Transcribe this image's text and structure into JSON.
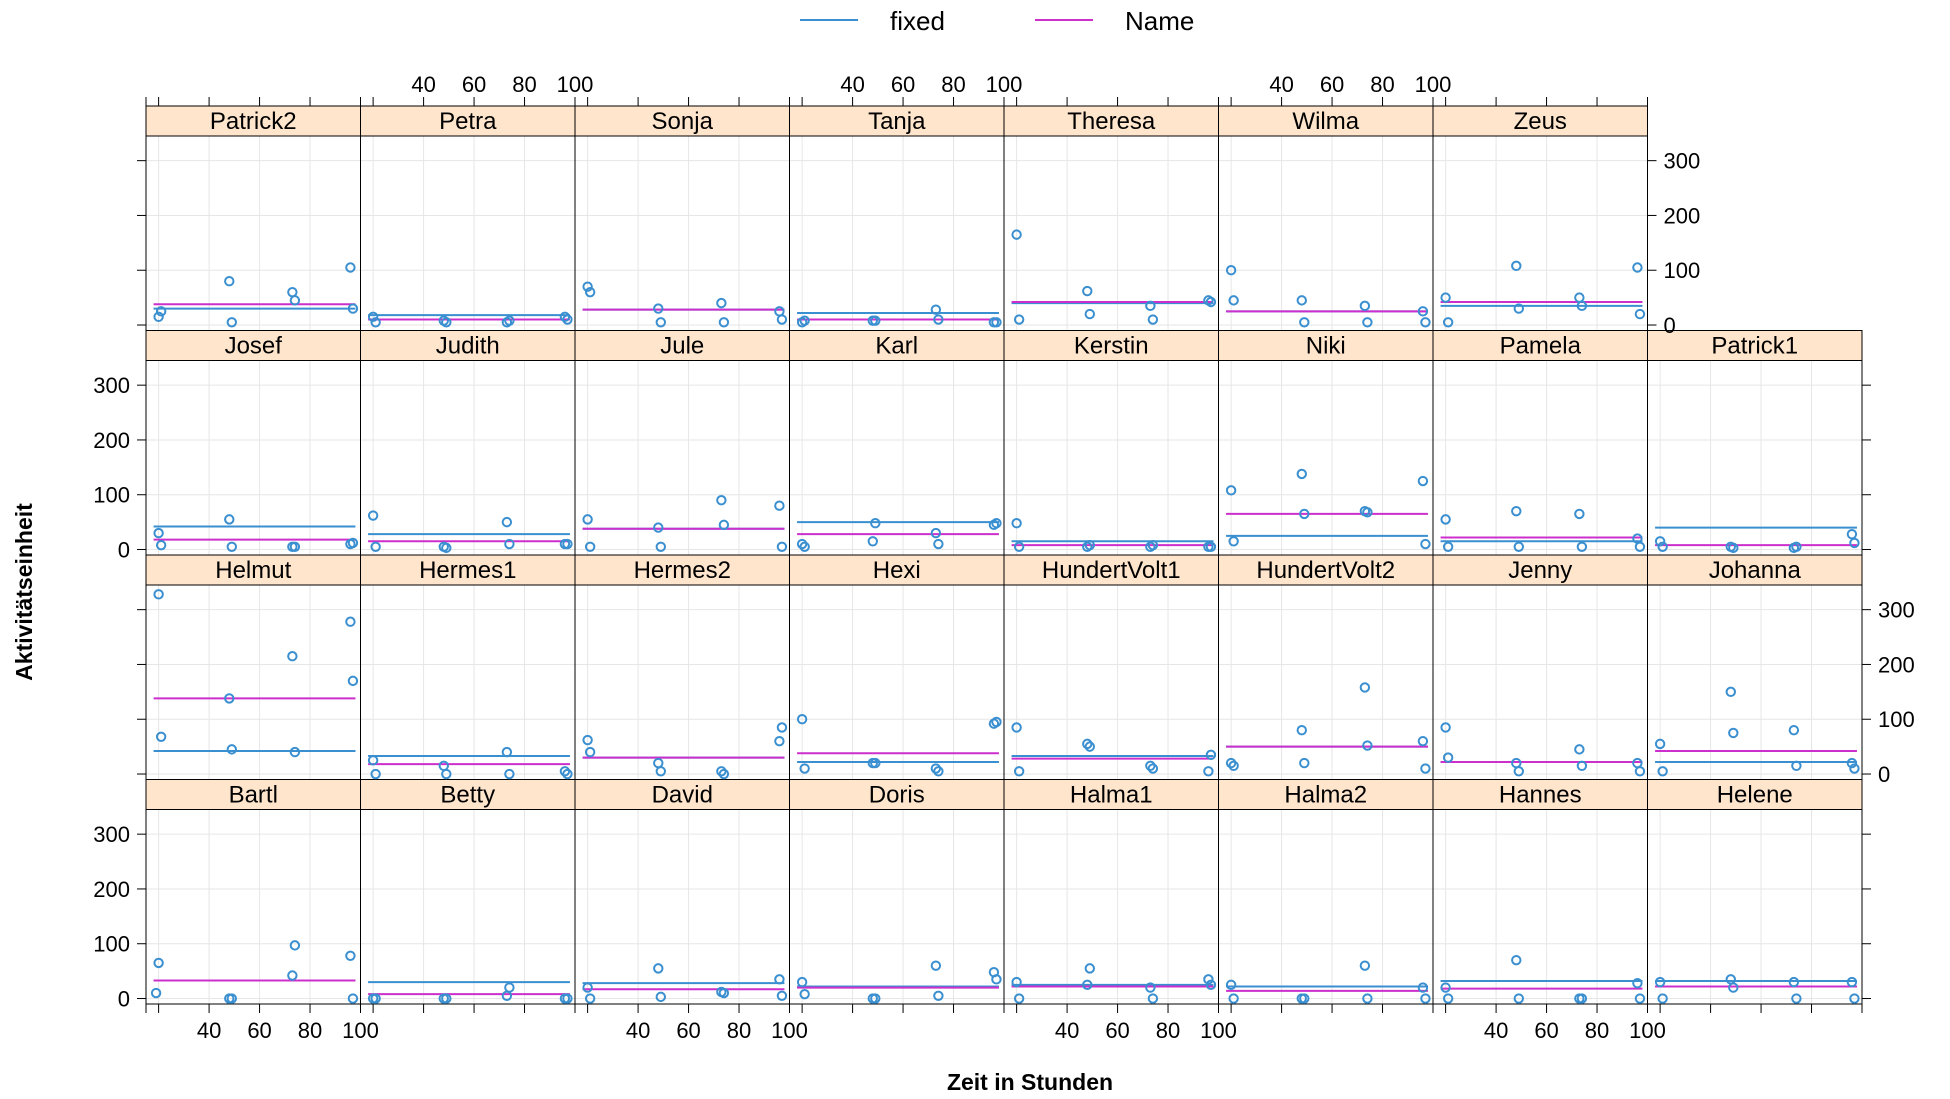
{
  "chart_data": {
    "type": "scatter",
    "layout": "lattice panels, 8 columns x 4 rows",
    "xlabel": "Zeit in Stunden",
    "ylabel": "Aktivitätseinheit",
    "xlim": [
      15,
      100
    ],
    "ylim": [
      -10,
      345
    ],
    "x_ticks": [
      40,
      60,
      80,
      100
    ],
    "y_ticks": [
      0,
      100,
      200,
      300
    ],
    "grid": true,
    "legend": {
      "position": "top",
      "items": [
        {
          "label": "fixed",
          "color": "#3a8fd0"
        },
        {
          "label": "Name",
          "color": "#cc2fcc"
        }
      ]
    },
    "colors": {
      "points": "#3a8fd0",
      "fixed": "#3a8fd0",
      "name": "#cc2fcc",
      "strip": "#ffe5cc"
    },
    "panels": [
      {
        "name": "Bartl",
        "row": 0,
        "col": 0,
        "fixed": 33,
        "ind": 33,
        "x": [
          19,
          20,
          48,
          49,
          73,
          74,
          96,
          97
        ],
        "y": [
          10,
          65,
          0,
          0,
          42,
          97,
          78,
          0
        ]
      },
      {
        "name": "Betty",
        "row": 0,
        "col": 1,
        "fixed": 30,
        "ind": 8,
        "x": [
          20,
          21,
          48,
          49,
          73,
          74,
          96,
          97
        ],
        "y": [
          0,
          0,
          0,
          0,
          5,
          20,
          0,
          0
        ]
      },
      {
        "name": "David",
        "row": 0,
        "col": 2,
        "fixed": 28,
        "ind": 17,
        "x": [
          20,
          21,
          48,
          49,
          73,
          74,
          96,
          97
        ],
        "y": [
          20,
          0,
          55,
          3,
          12,
          10,
          35,
          5
        ]
      },
      {
        "name": "Doris",
        "row": 0,
        "col": 3,
        "fixed": 22,
        "ind": 20,
        "x": [
          20,
          21,
          48,
          49,
          73,
          74,
          96,
          97
        ],
        "y": [
          30,
          8,
          0,
          0,
          60,
          5,
          48,
          35
        ]
      },
      {
        "name": "Halma1",
        "row": 0,
        "col": 4,
        "fixed": 25,
        "ind": 22,
        "x": [
          20,
          21,
          48,
          49,
          73,
          74,
          96,
          97
        ],
        "y": [
          30,
          0,
          25,
          55,
          20,
          0,
          35,
          25
        ]
      },
      {
        "name": "Halma2",
        "row": 0,
        "col": 5,
        "fixed": 22,
        "ind": 14,
        "x": [
          20,
          21,
          48,
          49,
          73,
          74,
          96,
          97
        ],
        "y": [
          25,
          0,
          0,
          0,
          60,
          0,
          20,
          0
        ]
      },
      {
        "name": "Hannes",
        "row": 0,
        "col": 6,
        "fixed": 32,
        "ind": 18,
        "x": [
          20,
          21,
          48,
          49,
          73,
          74,
          96,
          97
        ],
        "y": [
          20,
          0,
          70,
          0,
          0,
          0,
          28,
          0
        ]
      },
      {
        "name": "Helene",
        "row": 0,
        "col": 7,
        "fixed": 32,
        "ind": 22,
        "x": [
          20,
          21,
          48,
          49,
          73,
          74,
          96,
          97
        ],
        "y": [
          30,
          0,
          35,
          20,
          30,
          0,
          30,
          0
        ]
      },
      {
        "name": "Helmut",
        "row": 1,
        "col": 0,
        "fixed": 42,
        "ind": 138,
        "x": [
          20,
          21,
          48,
          49,
          73,
          74,
          96,
          97
        ],
        "y": [
          328,
          68,
          138,
          45,
          215,
          40,
          278,
          170
        ]
      },
      {
        "name": "Hermes1",
        "row": 1,
        "col": 1,
        "fixed": 33,
        "ind": 18,
        "x": [
          20,
          21,
          48,
          49,
          73,
          74,
          96,
          97
        ],
        "y": [
          25,
          0,
          15,
          0,
          40,
          0,
          5,
          0
        ]
      },
      {
        "name": "Hermes2",
        "row": 1,
        "col": 2,
        "fixed": 30,
        "ind": 30,
        "x": [
          20,
          21,
          48,
          49,
          73,
          74,
          96,
          97
        ],
        "y": [
          62,
          40,
          20,
          5,
          5,
          0,
          60,
          85
        ]
      },
      {
        "name": "Hexi",
        "row": 1,
        "col": 3,
        "fixed": 22,
        "ind": 38,
        "x": [
          20,
          21,
          48,
          49,
          73,
          74,
          96,
          97
        ],
        "y": [
          100,
          10,
          20,
          20,
          10,
          5,
          92,
          95
        ]
      },
      {
        "name": "HundertVolt1",
        "row": 1,
        "col": 4,
        "fixed": 33,
        "ind": 28,
        "x": [
          20,
          21,
          48,
          49,
          73,
          74,
          96,
          97
        ],
        "y": [
          85,
          5,
          55,
          50,
          15,
          10,
          5,
          35
        ]
      },
      {
        "name": "HundertVolt2",
        "row": 1,
        "col": 5,
        "fixed": 50,
        "ind": 50,
        "x": [
          20,
          21,
          48,
          49,
          73,
          74,
          96,
          97
        ],
        "y": [
          20,
          15,
          80,
          20,
          158,
          52,
          60,
          10
        ]
      },
      {
        "name": "Jenny",
        "row": 1,
        "col": 6,
        "fixed": 22,
        "ind": 22,
        "x": [
          20,
          21,
          48,
          49,
          73,
          74,
          96,
          97
        ],
        "y": [
          85,
          30,
          20,
          5,
          45,
          15,
          20,
          5
        ]
      },
      {
        "name": "Johanna",
        "row": 1,
        "col": 7,
        "fixed": 22,
        "ind": 42,
        "x": [
          20,
          21,
          48,
          49,
          73,
          74,
          96,
          97
        ],
        "y": [
          55,
          5,
          150,
          75,
          80,
          15,
          20,
          10
        ]
      },
      {
        "name": "Josef",
        "row": 2,
        "col": 0,
        "fixed": 42,
        "ind": 18,
        "x": [
          20,
          21,
          48,
          49,
          73,
          74,
          96,
          97
        ],
        "y": [
          30,
          8,
          55,
          5,
          5,
          5,
          10,
          12
        ]
      },
      {
        "name": "Judith",
        "row": 2,
        "col": 1,
        "fixed": 28,
        "ind": 15,
        "x": [
          20,
          21,
          48,
          49,
          73,
          74,
          96,
          97
        ],
        "y": [
          62,
          5,
          5,
          3,
          50,
          10,
          10,
          10
        ]
      },
      {
        "name": "Jule",
        "row": 2,
        "col": 2,
        "fixed": 38,
        "ind": 38,
        "x": [
          20,
          21,
          48,
          49,
          73,
          74,
          96,
          97
        ],
        "y": [
          55,
          5,
          40,
          5,
          90,
          45,
          80,
          5
        ]
      },
      {
        "name": "Karl",
        "row": 2,
        "col": 3,
        "fixed": 50,
        "ind": 28,
        "x": [
          20,
          21,
          48,
          49,
          73,
          74,
          96,
          97
        ],
        "y": [
          10,
          5,
          15,
          48,
          30,
          10,
          45,
          48
        ]
      },
      {
        "name": "Kerstin",
        "row": 2,
        "col": 4,
        "fixed": 15,
        "ind": 8,
        "x": [
          20,
          21,
          48,
          49,
          73,
          74,
          96,
          97
        ],
        "y": [
          48,
          5,
          5,
          8,
          5,
          8,
          5,
          5
        ]
      },
      {
        "name": "Niki",
        "row": 2,
        "col": 5,
        "fixed": 25,
        "ind": 65,
        "x": [
          20,
          21,
          48,
          49,
          73,
          74,
          96,
          97
        ],
        "y": [
          108,
          15,
          138,
          65,
          70,
          68,
          125,
          10
        ]
      },
      {
        "name": "Pamela",
        "row": 2,
        "col": 6,
        "fixed": 15,
        "ind": 22,
        "x": [
          20,
          21,
          48,
          49,
          73,
          74,
          96,
          97
        ],
        "y": [
          55,
          5,
          70,
          5,
          65,
          5,
          20,
          5
        ]
      },
      {
        "name": "Patrick1",
        "row": 2,
        "col": 7,
        "fixed": 40,
        "ind": 8,
        "x": [
          20,
          21,
          48,
          49,
          73,
          74,
          96,
          97
        ],
        "y": [
          15,
          5,
          5,
          3,
          3,
          5,
          28,
          12
        ]
      },
      {
        "name": "Patrick2",
        "row": 3,
        "col": 0,
        "fixed": 30,
        "ind": 38,
        "x": [
          20,
          21,
          48,
          49,
          73,
          74,
          96,
          97
        ],
        "y": [
          15,
          25,
          80,
          5,
          60,
          45,
          105,
          30
        ]
      },
      {
        "name": "Petra",
        "row": 3,
        "col": 1,
        "fixed": 18,
        "ind": 10,
        "x": [
          20,
          21,
          48,
          49,
          73,
          74,
          96,
          97
        ],
        "y": [
          15,
          5,
          8,
          5,
          5,
          8,
          15,
          10
        ]
      },
      {
        "name": "Sonja",
        "row": 3,
        "col": 2,
        "fixed": 28,
        "ind": 28,
        "x": [
          20,
          21,
          48,
          49,
          73,
          74,
          96,
          97
        ],
        "y": [
          70,
          60,
          30,
          5,
          40,
          5,
          25,
          10
        ]
      },
      {
        "name": "Tanja",
        "row": 3,
        "col": 3,
        "fixed": 22,
        "ind": 10,
        "x": [
          20,
          21,
          48,
          49,
          73,
          74,
          96,
          97
        ],
        "y": [
          5,
          8,
          8,
          8,
          28,
          10,
          5,
          5
        ]
      },
      {
        "name": "Theresa",
        "row": 3,
        "col": 4,
        "fixed": 40,
        "ind": 42,
        "x": [
          20,
          21,
          48,
          49,
          73,
          74,
          96,
          97
        ],
        "y": [
          165,
          10,
          62,
          20,
          35,
          10,
          45,
          42
        ]
      },
      {
        "name": "Wilma",
        "row": 3,
        "col": 5,
        "fixed": 25,
        "ind": 25,
        "x": [
          20,
          21,
          48,
          49,
          73,
          74,
          96,
          97
        ],
        "y": [
          100,
          45,
          45,
          5,
          35,
          5,
          25,
          5
        ]
      },
      {
        "name": "Zeus",
        "row": 3,
        "col": 6,
        "fixed": 35,
        "ind": 42,
        "x": [
          20,
          21,
          48,
          49,
          73,
          74,
          96,
          97
        ],
        "y": [
          50,
          5,
          108,
          30,
          50,
          35,
          105,
          20
        ]
      }
    ]
  }
}
